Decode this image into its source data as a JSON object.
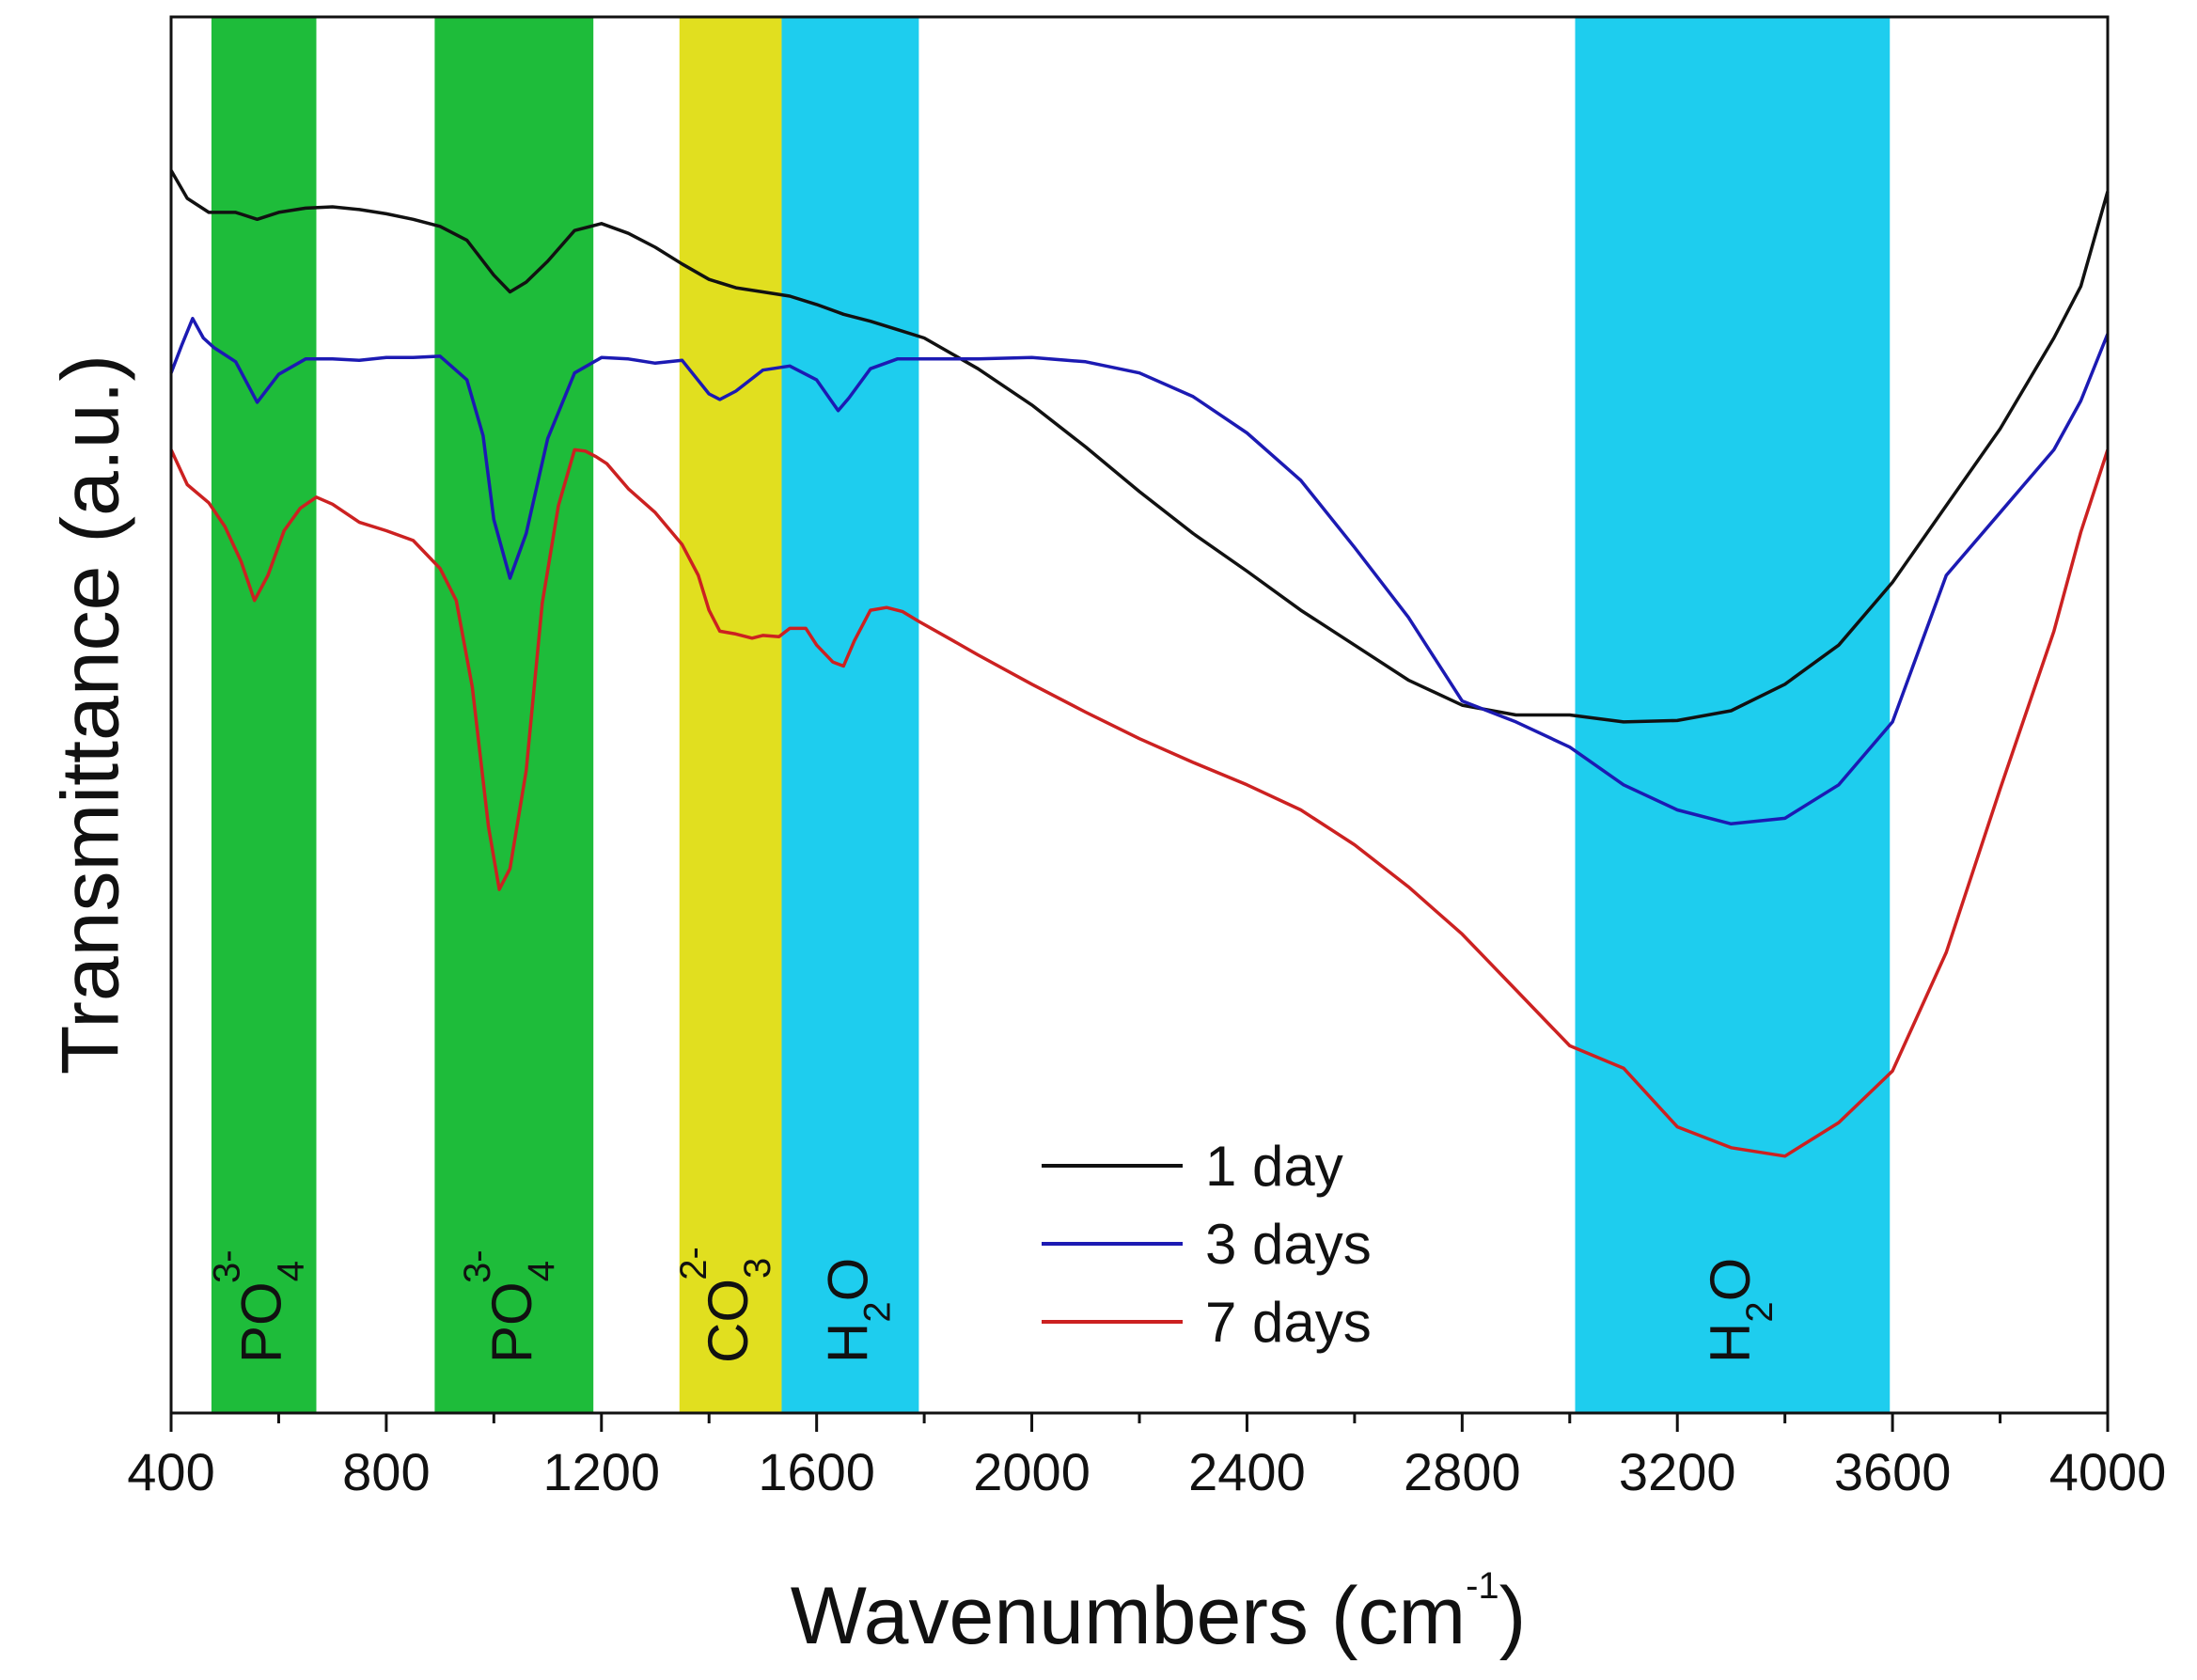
{
  "chart_data": {
    "type": "line",
    "title": "",
    "xlabel": "Wavenumbers (cm",
    "xlabel_sup": "-1",
    "xlabel_close": ")",
    "ylabel": "Transmittance (a.u.)",
    "xlim": [
      400,
      4000
    ],
    "ylim": [
      0,
      100
    ],
    "x_ticks": [
      400,
      800,
      1200,
      1600,
      2000,
      2400,
      2800,
      3200,
      3600,
      4000
    ],
    "x_tick_labels": [
      "400",
      "800",
      "1200",
      "1600",
      "2000",
      "2400",
      "2800",
      "3200",
      "3600",
      "4000"
    ],
    "y_ticks_shown": false,
    "grid": false,
    "legend_position": "bottom-center",
    "bands": [
      {
        "name": "band-po4-1",
        "from": 475,
        "to": 670,
        "color": "#1ebc3a",
        "label": "PO",
        "sub": "4",
        "sup": "3-"
      },
      {
        "name": "band-po4-2",
        "from": 890,
        "to": 1185,
        "color": "#1ebc3a",
        "label": "PO",
        "sub": "4",
        "sup": "3-"
      },
      {
        "name": "band-co3",
        "from": 1345,
        "to": 1535,
        "color": "#e1df1f",
        "label": "CO",
        "sub": "3",
        "sup": "2-"
      },
      {
        "name": "band-h2o-1",
        "from": 1535,
        "to": 1790,
        "color": "#1ecdee",
        "label": "H",
        "sub": "2",
        "tail": "O"
      },
      {
        "name": "band-h2o-2",
        "from": 3010,
        "to": 3595,
        "color": "#1ecdee",
        "label": "H",
        "sub": "2",
        "tail": "O"
      }
    ],
    "series": [
      {
        "name": "1 day",
        "color": "#111111",
        "x": [
          400,
          430,
          470,
          520,
          560,
          600,
          650,
          700,
          750,
          800,
          850,
          900,
          950,
          1000,
          1030,
          1060,
          1100,
          1150,
          1200,
          1250,
          1300,
          1350,
          1400,
          1450,
          1500,
          1550,
          1600,
          1650,
          1700,
          1750,
          1800,
          1900,
          2000,
          2100,
          2200,
          2300,
          2400,
          2500,
          2600,
          2700,
          2800,
          2900,
          3000,
          3100,
          3200,
          3300,
          3400,
          3500,
          3600,
          3700,
          3800,
          3900,
          3950,
          4000
        ],
        "y": [
          89,
          87,
          86,
          86,
          85.5,
          86,
          86.3,
          86.4,
          86.2,
          85.9,
          85.5,
          85,
          84,
          81.5,
          80.3,
          81,
          82.5,
          84.7,
          85.2,
          84.5,
          83.5,
          82.3,
          81.2,
          80.6,
          80.3,
          80,
          79.4,
          78.7,
          78.2,
          77.6,
          77,
          74.8,
          72.2,
          69.2,
          66,
          63,
          60.3,
          57.5,
          55,
          52.5,
          50.7,
          50,
          50,
          49.5,
          49.6,
          50.3,
          52.2,
          55,
          59.5,
          65,
          70.5,
          77,
          80.7,
          87.5
        ]
      },
      {
        "name": "3 days",
        "color": "#1c1ab3",
        "x": [
          400,
          420,
          440,
          460,
          480,
          520,
          560,
          600,
          650,
          700,
          750,
          800,
          850,
          900,
          950,
          980,
          1000,
          1030,
          1060,
          1100,
          1150,
          1200,
          1250,
          1300,
          1350,
          1400,
          1420,
          1450,
          1500,
          1550,
          1600,
          1640,
          1660,
          1700,
          1750,
          1800,
          1900,
          2000,
          2100,
          2200,
          2300,
          2400,
          2500,
          2600,
          2700,
          2800,
          2900,
          3000,
          3100,
          3200,
          3300,
          3400,
          3500,
          3600,
          3700,
          3800,
          3900,
          3950,
          4000
        ],
        "y": [
          74.5,
          76.5,
          78.4,
          77,
          76.3,
          75.3,
          72.4,
          74.4,
          75.5,
          75.5,
          75.4,
          75.6,
          75.6,
          75.7,
          74,
          70,
          64,
          59.8,
          63,
          69.8,
          74.5,
          75.6,
          75.5,
          75.2,
          75.4,
          73,
          72.6,
          73.2,
          74.7,
          75,
          74,
          71.8,
          72.7,
          74.8,
          75.5,
          75.5,
          75.5,
          75.6,
          75.3,
          74.5,
          72.8,
          70.2,
          66.8,
          62,
          57,
          51,
          49.5,
          47.7,
          45,
          43.2,
          42.2,
          42.6,
          45,
          49.5,
          60,
          64.5,
          69,
          72.5,
          77.3
        ]
      },
      {
        "name": "7 days",
        "color": "#cc2121",
        "x": [
          400,
          430,
          470,
          500,
          530,
          555,
          580,
          610,
          640,
          670,
          700,
          750,
          800,
          850,
          900,
          930,
          960,
          990,
          1010,
          1030,
          1060,
          1090,
          1120,
          1150,
          1170,
          1190,
          1210,
          1250,
          1300,
          1350,
          1380,
          1400,
          1420,
          1450,
          1480,
          1500,
          1530,
          1550,
          1580,
          1600,
          1630,
          1650,
          1670,
          1700,
          1730,
          1760,
          1790,
          1850,
          1900,
          2000,
          2100,
          2200,
          2300,
          2400,
          2500,
          2600,
          2700,
          2800,
          2900,
          3000,
          3100,
          3200,
          3300,
          3400,
          3500,
          3600,
          3700,
          3800,
          3900,
          3950,
          4000
        ],
        "y": [
          69,
          66.5,
          65.2,
          63.5,
          61,
          58.2,
          60,
          63.2,
          64.8,
          65.6,
          65.1,
          63.8,
          63.2,
          62.5,
          60.5,
          58.2,
          52,
          42,
          37.5,
          39,
          46,
          58,
          65,
          69,
          68.9,
          68.5,
          68,
          66.2,
          64.5,
          62.2,
          60,
          57.5,
          56,
          55.8,
          55.5,
          55.7,
          55.6,
          56.2,
          56.2,
          55,
          53.8,
          53.5,
          55.3,
          57.5,
          57.7,
          57.4,
          56.7,
          55.4,
          54.3,
          52.2,
          50.2,
          48.3,
          46.6,
          45,
          43.2,
          40.7,
          37.7,
          34.3,
          30.3,
          26.3,
          24.7,
          20.5,
          19,
          18.4,
          20.8,
          24.5,
          33,
          44.7,
          56,
          63.1,
          69
        ]
      }
    ]
  }
}
